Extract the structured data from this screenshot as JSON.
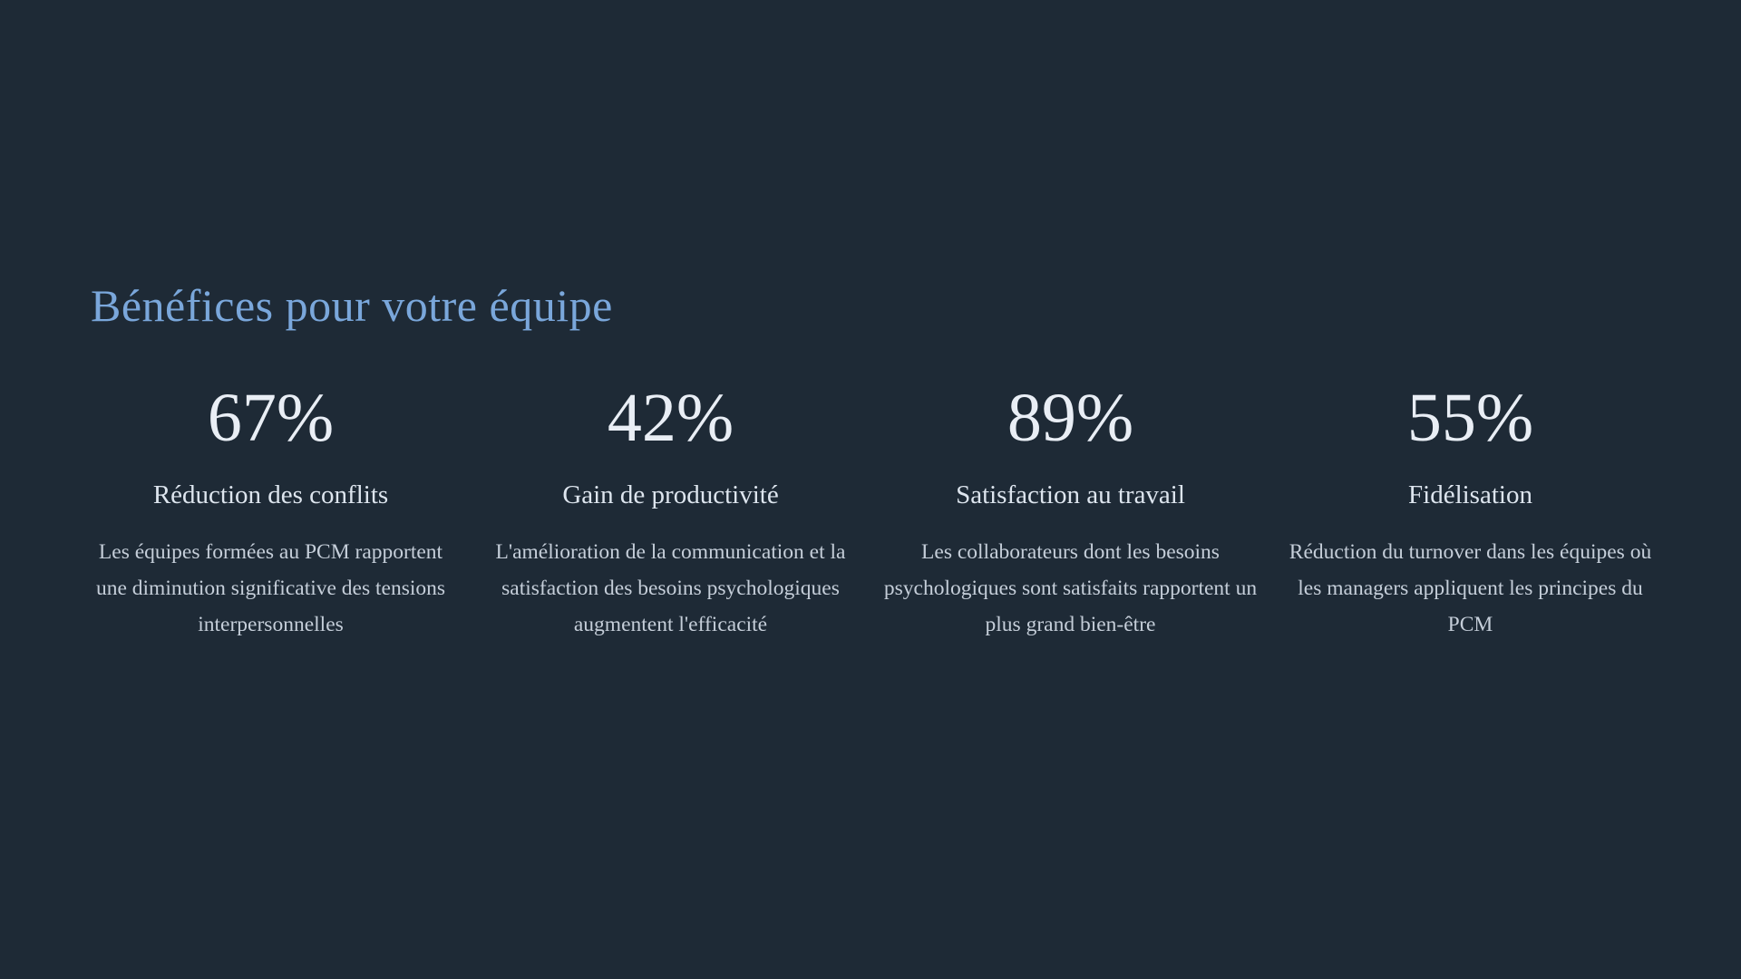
{
  "slide": {
    "title": "Bénéfices pour votre équipe",
    "stats": [
      {
        "value": "67%",
        "label": "Réduction des conflits",
        "description": "Les équipes formées au PCM rapportent une diminution significative des tensions interpersonnelles"
      },
      {
        "value": "42%",
        "label": "Gain de productivité",
        "description": "L'amélioration de la communication et la satisfaction des besoins psychologiques augmentent l'efficacité"
      },
      {
        "value": "89%",
        "label": "Satisfaction au travail",
        "description": "Les collaborateurs dont les besoins psychologiques sont satisfaits rapportent un plus grand bien-être"
      },
      {
        "value": "55%",
        "label": "Fidélisation",
        "description": "Réduction du turnover dans les équipes où les managers appliquent les principes du PCM"
      }
    ],
    "colors": {
      "background": "#1e2a36",
      "title": "#7aa7db",
      "stat_value": "#e9eef5",
      "stat_label": "#dde5ee",
      "stat_description": "#c5ced9"
    }
  }
}
